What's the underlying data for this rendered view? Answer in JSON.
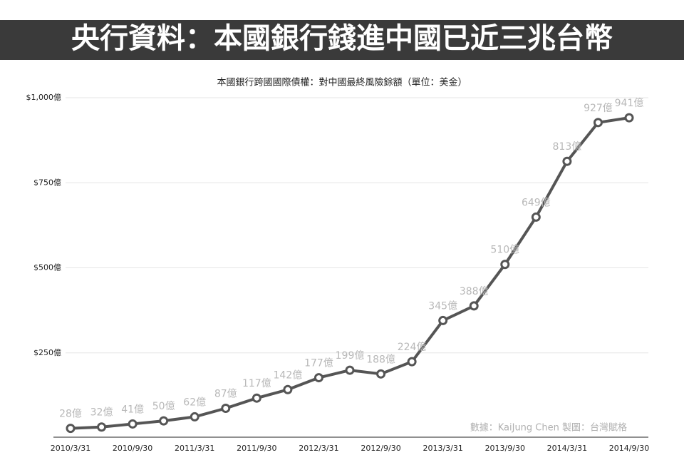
{
  "chart_data": {
    "type": "line",
    "title": "央行資料：本國銀行錢進中國已近三兆台幣",
    "subtitle": "本國銀行跨國國際債權：對中國最終風險餘額（單位：美金）",
    "source": "數據：KaiJung Chen 製圖：台灣賦格",
    "categories": [
      "2010/3/31",
      null,
      "2010/9/30",
      null,
      "2011/3/31",
      null,
      "2011/9/30",
      null,
      "2012/3/31",
      null,
      "2012/9/30",
      null,
      "2013/3/31",
      null,
      "2013/9/30",
      null,
      "2014/3/31",
      null,
      "2014/9/30"
    ],
    "series": [
      {
        "name": "本國銀行跨國國際債權",
        "color": "#555555",
        "values": [
          28,
          32,
          41,
          50,
          62,
          87,
          117,
          142,
          177,
          199,
          188,
          224,
          345,
          388,
          510,
          649,
          813,
          927,
          941
        ],
        "value_labels": [
          "28億",
          "32億",
          "41億",
          "50億",
          "62億",
          "87億",
          "117億",
          "142億",
          "177億",
          "199億",
          "188億",
          "224億",
          "345億",
          "388億",
          "510億",
          "649億",
          "813億",
          "927億",
          "941億"
        ]
      }
    ],
    "ylim": [
      0,
      1000
    ],
    "yticks": [
      {
        "value": 250,
        "label": "$250億"
      },
      {
        "value": 500,
        "label": "$500億"
      },
      {
        "value": 750,
        "label": "$750億"
      },
      {
        "value": 1000,
        "label": "$1,000億"
      }
    ],
    "grid": true
  }
}
